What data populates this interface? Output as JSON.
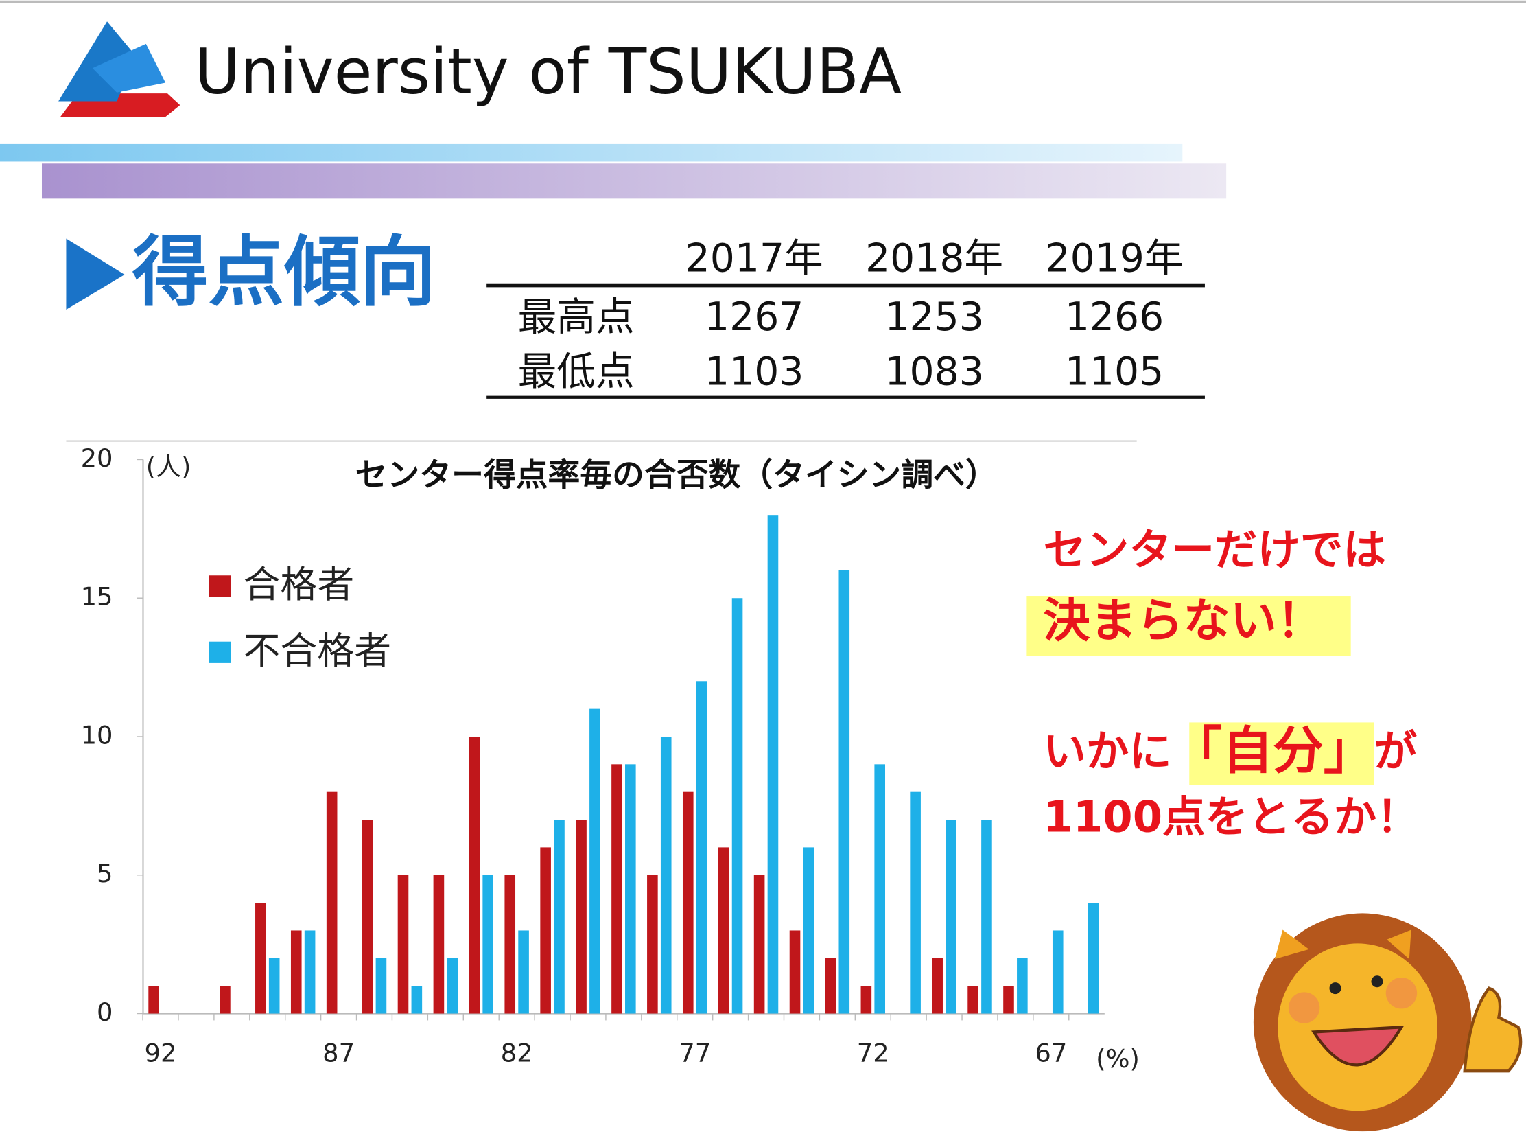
{
  "header": {
    "title": "University of TSUKUBA"
  },
  "section": {
    "title": "得点傾向"
  },
  "table": {
    "columns": [
      "2017年",
      "2018年",
      "2019年"
    ],
    "rows": [
      [
        "最高点",
        "1267",
        "1253",
        "1266"
      ],
      [
        "最低点",
        "1103",
        "1083",
        "1105"
      ]
    ]
  },
  "chart_data": {
    "type": "bar",
    "title": "センター得点率毎の合否数（タイシン調べ）",
    "y_label": "(人)",
    "x_label": "(%)",
    "categories": [
      "92",
      null,
      null,
      null,
      null,
      "87",
      null,
      null,
      null,
      null,
      "82",
      null,
      null,
      null,
      null,
      "77",
      null,
      null,
      null,
      null,
      "72",
      null,
      null,
      null,
      null,
      "67",
      null
    ],
    "series": [
      {
        "name": "合格者",
        "color": "#c0171b",
        "values": [
          1,
          0,
          1,
          4,
          3,
          8,
          7,
          5,
          5,
          10,
          5,
          6,
          7,
          9,
          5,
          8,
          6,
          5,
          3,
          2,
          1,
          0,
          2,
          1,
          1,
          0,
          0
        ]
      },
      {
        "name": "不合格者",
        "color": "#1eb0e8",
        "values": [
          0,
          0,
          0,
          2,
          3,
          0,
          2,
          1,
          2,
          5,
          3,
          7,
          11,
          9,
          10,
          12,
          15,
          18,
          6,
          16,
          9,
          8,
          7,
          7,
          2,
          3,
          4
        ]
      }
    ],
    "ylim": [
      0,
      20
    ],
    "yticks": [
      0,
      5,
      10,
      15,
      20
    ],
    "grid": false,
    "legend": "upper left"
  },
  "callout": {
    "line1": "センターだけでは",
    "line2": "決まらない！",
    "line3": [
      "いかに",
      "「自分」",
      "が"
    ],
    "line4": "1100点をとるか！"
  }
}
